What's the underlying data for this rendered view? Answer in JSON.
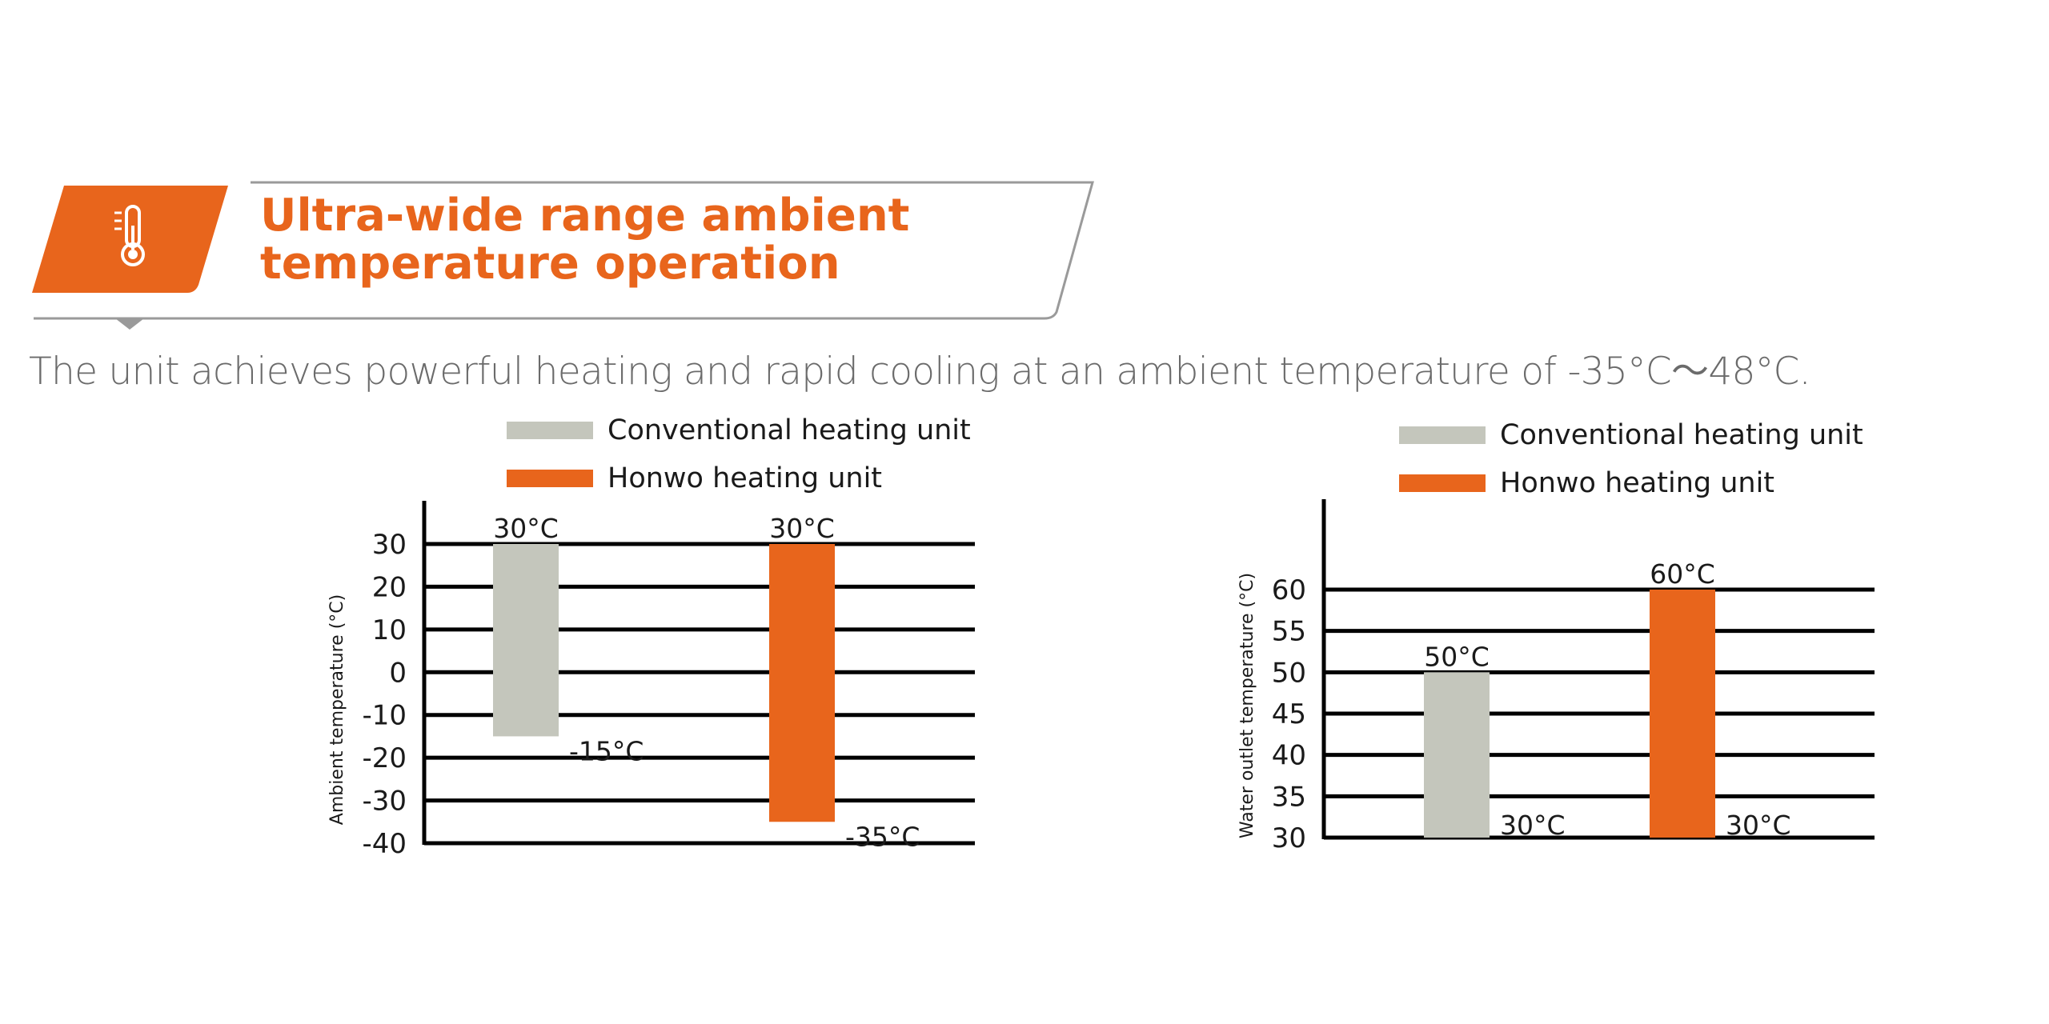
{
  "header": {
    "title_line1": "Ultra-wide range ambient",
    "title_line2": "temperature operation",
    "icon": "thermometer-icon",
    "accent_color": "#E8651C"
  },
  "subtitle": "The unit achieves powerful heating and rapid cooling at an ambient temperature of -35°C～48°C.",
  "chart_data": [
    {
      "type": "bar",
      "kind": "range",
      "ylabel": "Ambient temperature (°C)",
      "ylim": [
        -40,
        30
      ],
      "yticks": [
        30,
        20,
        10,
        0,
        -10,
        -20,
        -30,
        -40
      ],
      "ytick_labels": [
        "30",
        "20",
        "10",
        "0",
        "-10",
        "-20",
        "-30",
        "-40"
      ],
      "grid": true,
      "legend": [
        {
          "name": "Conventional heating unit",
          "color": "#C4C6BC"
        },
        {
          "name": "Honwo heating unit",
          "color": "#E8651C"
        }
      ],
      "bars": [
        {
          "name": "Conventional heating unit",
          "low": -15,
          "high": 30,
          "color": "#C4C6BC",
          "high_label": "30°C",
          "low_label": "-15°C"
        },
        {
          "name": "Honwo heating unit",
          "low": -35,
          "high": 30,
          "color": "#E8651C",
          "high_label": "30°C",
          "low_label": "-35°C"
        }
      ]
    },
    {
      "type": "bar",
      "kind": "range",
      "ylabel": "Water outlet temperature (°C)",
      "ylim": [
        30,
        60
      ],
      "yticks": [
        60,
        55,
        50,
        45,
        40,
        35,
        30
      ],
      "ytick_labels": [
        "60",
        "55",
        "50",
        "45",
        "40",
        "35",
        "30"
      ],
      "grid": true,
      "legend": [
        {
          "name": "Conventional heating unit",
          "color": "#C4C6BC"
        },
        {
          "name": "Honwo heating unit",
          "color": "#E8651C"
        }
      ],
      "bars": [
        {
          "name": "Conventional heating unit",
          "low": 30,
          "high": 50,
          "color": "#C4C6BC",
          "high_label": "50°C",
          "low_label": "30°C"
        },
        {
          "name": "Honwo heating unit",
          "low": 30,
          "high": 60,
          "color": "#E8651C",
          "high_label": "60°C",
          "low_label": "30°C"
        }
      ]
    }
  ]
}
